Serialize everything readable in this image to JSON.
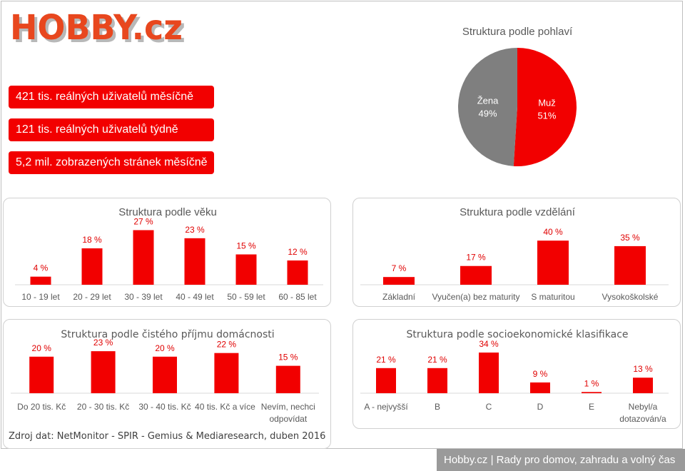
{
  "brand": {
    "logo_text": "HOBBY.cz",
    "accent": "#f20000",
    "logo_color": "#e8471e",
    "logo_shadow": "#b8b8b8"
  },
  "stats": [
    "421 tis. reálných uživatelů měsíčně",
    "121 tis. reálných uživatelů týdně",
    "5,2 mil. zobrazených stránek měsíčně"
  ],
  "source_text": "Zdroj dat: NetMonitor - SPIR - Gemius & Mediaresearch, duben 2016",
  "footer_text": "Hobby.cz | Rady pro domov, zahradu a volný čas",
  "chart_data": [
    {
      "type": "pie",
      "title": "Struktura podle pohlaví",
      "slices": [
        {
          "label": "Muž",
          "value": 51,
          "value_label": "51%",
          "color": "#f20000"
        },
        {
          "label": "Žena",
          "value": 49,
          "value_label": "49%",
          "color": "#7f7f7f"
        }
      ]
    },
    {
      "type": "bar",
      "title": "Struktura podle věku",
      "categories": [
        "10 - 19 let",
        "20 - 29 let",
        "30 - 39 let",
        "40 - 49 let",
        "50 - 59 let",
        "60 - 85 let"
      ],
      "values": [
        4,
        18,
        27,
        23,
        15,
        12
      ],
      "value_labels": [
        "4 %",
        "18 %",
        "27 %",
        "23 %",
        "15 %",
        "12 %"
      ],
      "ylim": [
        0,
        30
      ]
    },
    {
      "type": "bar",
      "title": "Struktura podle vzdělání",
      "categories": [
        "Základní",
        "Vyučen(a) bez maturity",
        "S maturitou",
        "Vysokoškolské"
      ],
      "values": [
        7,
        17,
        40,
        35
      ],
      "value_labels": [
        "7 %",
        "17 %",
        "40 %",
        "35 %"
      ],
      "ylim": [
        0,
        44
      ]
    },
    {
      "type": "bar",
      "title": "Struktura podle čistého příjmu domácnosti",
      "categories": [
        "Do 20 tis. Kč",
        "20 - 30 tis. Kč",
        "30 - 40 tis. Kč",
        "40 tis. Kč a více",
        "Nevím, nechci odpovídat"
      ],
      "values": [
        20,
        23,
        20,
        22,
        15
      ],
      "value_labels": [
        "20 %",
        "23 %",
        "20 %",
        "22 %",
        "15 %"
      ],
      "ylim": [
        0,
        25
      ]
    },
    {
      "type": "bar",
      "title": "Struktura podle socioekonomické klasifikace",
      "categories": [
        "A - nejvyšší",
        "B",
        "C",
        "D",
        "E",
        "Nebyl/a dotazován/a"
      ],
      "values": [
        21,
        21,
        34,
        9,
        1,
        13
      ],
      "value_labels": [
        "21 %",
        "21 %",
        "34 %",
        "9 %",
        "1 %",
        "13 %"
      ],
      "ylim": [
        0,
        37
      ]
    }
  ]
}
